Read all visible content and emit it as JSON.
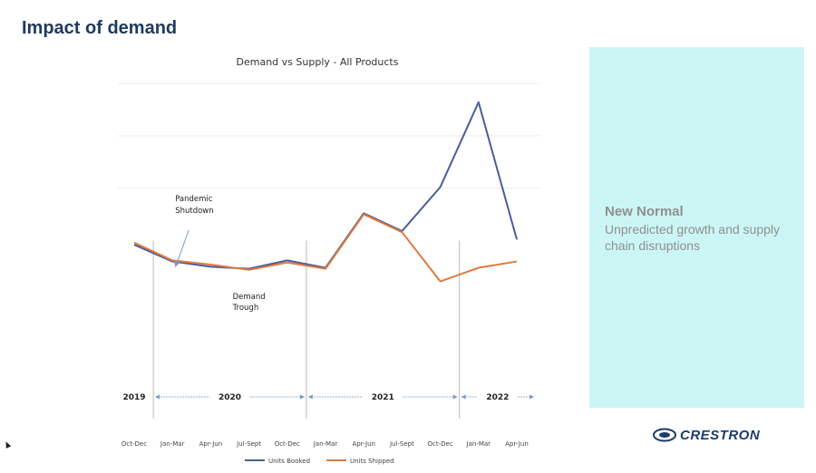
{
  "page": {
    "title": "Impact of demand"
  },
  "panel": {
    "heading": "New Normal",
    "subtext": "Unpredicted growth and supply chain disruptions"
  },
  "logo": {
    "text": "CRESTRON",
    "icon": "crestron-logo-icon"
  },
  "colors": {
    "booked": "#4a5e9a",
    "shipped": "#e07a3e",
    "title": "#1f3a5f",
    "panel": "#ccf6f5",
    "panel_text": "#8f8f8f"
  },
  "chart_data": {
    "type": "line",
    "title": "Demand vs Supply - All Products",
    "categories": [
      "Oct-Dec",
      "Jan-Mar",
      "Apr-Jun",
      "Jul-Sept",
      "Oct-Dec",
      "Jan-Mar",
      "Apr-Jun",
      "Jul-Sept",
      "Oct-Dec",
      "Jan-Mar",
      "Apr-Jun"
    ],
    "series": [
      {
        "name": "Units Booked",
        "values": [
          46,
          30,
          25,
          23,
          31,
          24,
          76,
          59,
          101,
          182,
          51
        ]
      },
      {
        "name": "Units Shipped",
        "values": [
          48,
          31,
          27,
          22,
          29,
          23,
          75,
          58,
          11,
          24,
          30
        ]
      }
    ],
    "ylim": [
      -120,
      200
    ],
    "annotations": [
      {
        "text": [
          "Pandemic",
          "Shutdown"
        ],
        "category_index": 1
      },
      {
        "text": [
          "Demand",
          "Trough"
        ],
        "category_index": 3
      }
    ],
    "years": [
      {
        "label": "2019",
        "from": -0.1,
        "to": 0.1
      },
      {
        "label": "2020",
        "from": 0.5,
        "to": 4.5
      },
      {
        "label": "2021",
        "from": 4.5,
        "to": 8.5
      },
      {
        "label": "2022",
        "from": 8.5,
        "to": 10.5
      }
    ],
    "dividers": [
      0.5,
      4.5,
      8.5
    ],
    "legend_position": "bottom",
    "grid": true
  }
}
